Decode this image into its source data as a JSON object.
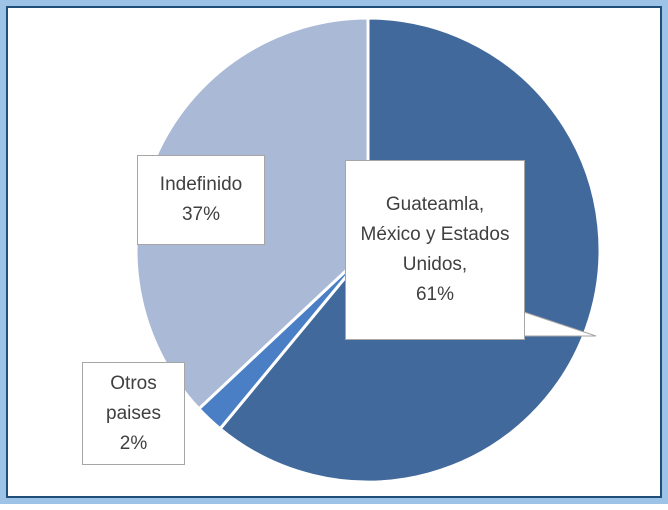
{
  "chart_data": {
    "type": "pie",
    "categories": [
      "Guateamla, México y Estados Unidos,",
      "Otros paises",
      "Indefinido"
    ],
    "values": [
      61,
      2,
      37
    ],
    "value_labels": [
      "61%",
      "2%",
      "37%"
    ],
    "colors": [
      "#41699c",
      "#4a7fc6",
      "#a9b9d6"
    ]
  }
}
